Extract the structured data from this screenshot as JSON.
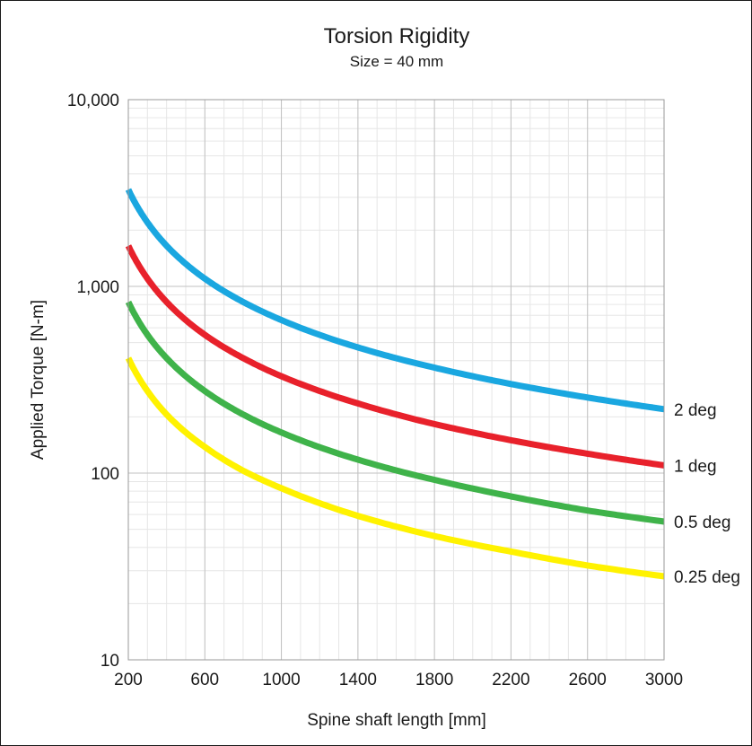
{
  "chart_data": {
    "type": "line",
    "title": "Torsion Rigidity",
    "subtitle": "Size = 40 mm",
    "xlabel": "Spine shaft length [mm]",
    "ylabel": "Applied Torque [N-m]",
    "xlim": [
      200,
      3000
    ],
    "ylim": [
      10,
      10000
    ],
    "yscale": "log",
    "grid": true,
    "x_ticks": [
      "200",
      "600",
      "1000",
      "1400",
      "1800",
      "2200",
      "2600",
      "3000"
    ],
    "y_ticks": [
      "10",
      "100",
      "1,000",
      "10,000"
    ],
    "x": [
      200,
      300,
      400,
      600,
      800,
      1000,
      1400,
      1800,
      2200,
      2600,
      3000
    ],
    "series": [
      {
        "name": "2 deg",
        "color": "#1aa7e0",
        "values": [
          3300,
          2200,
          1650,
          1100,
          825,
          660,
          471,
          367,
          300,
          254,
          220
        ]
      },
      {
        "name": "1 deg",
        "color": "#e8212b",
        "values": [
          1650,
          1100,
          825,
          550,
          413,
          330,
          236,
          183,
          150,
          127,
          110
        ]
      },
      {
        "name": "0.5 deg",
        "color": "#3fb34a",
        "values": [
          825,
          550,
          413,
          275,
          206,
          165,
          118,
          92,
          75,
          63,
          55
        ]
      },
      {
        "name": "0.25 deg",
        "color": "#fff200",
        "values": [
          413,
          275,
          206,
          138,
          103,
          83,
          59,
          46,
          38,
          32,
          28
        ]
      }
    ]
  }
}
